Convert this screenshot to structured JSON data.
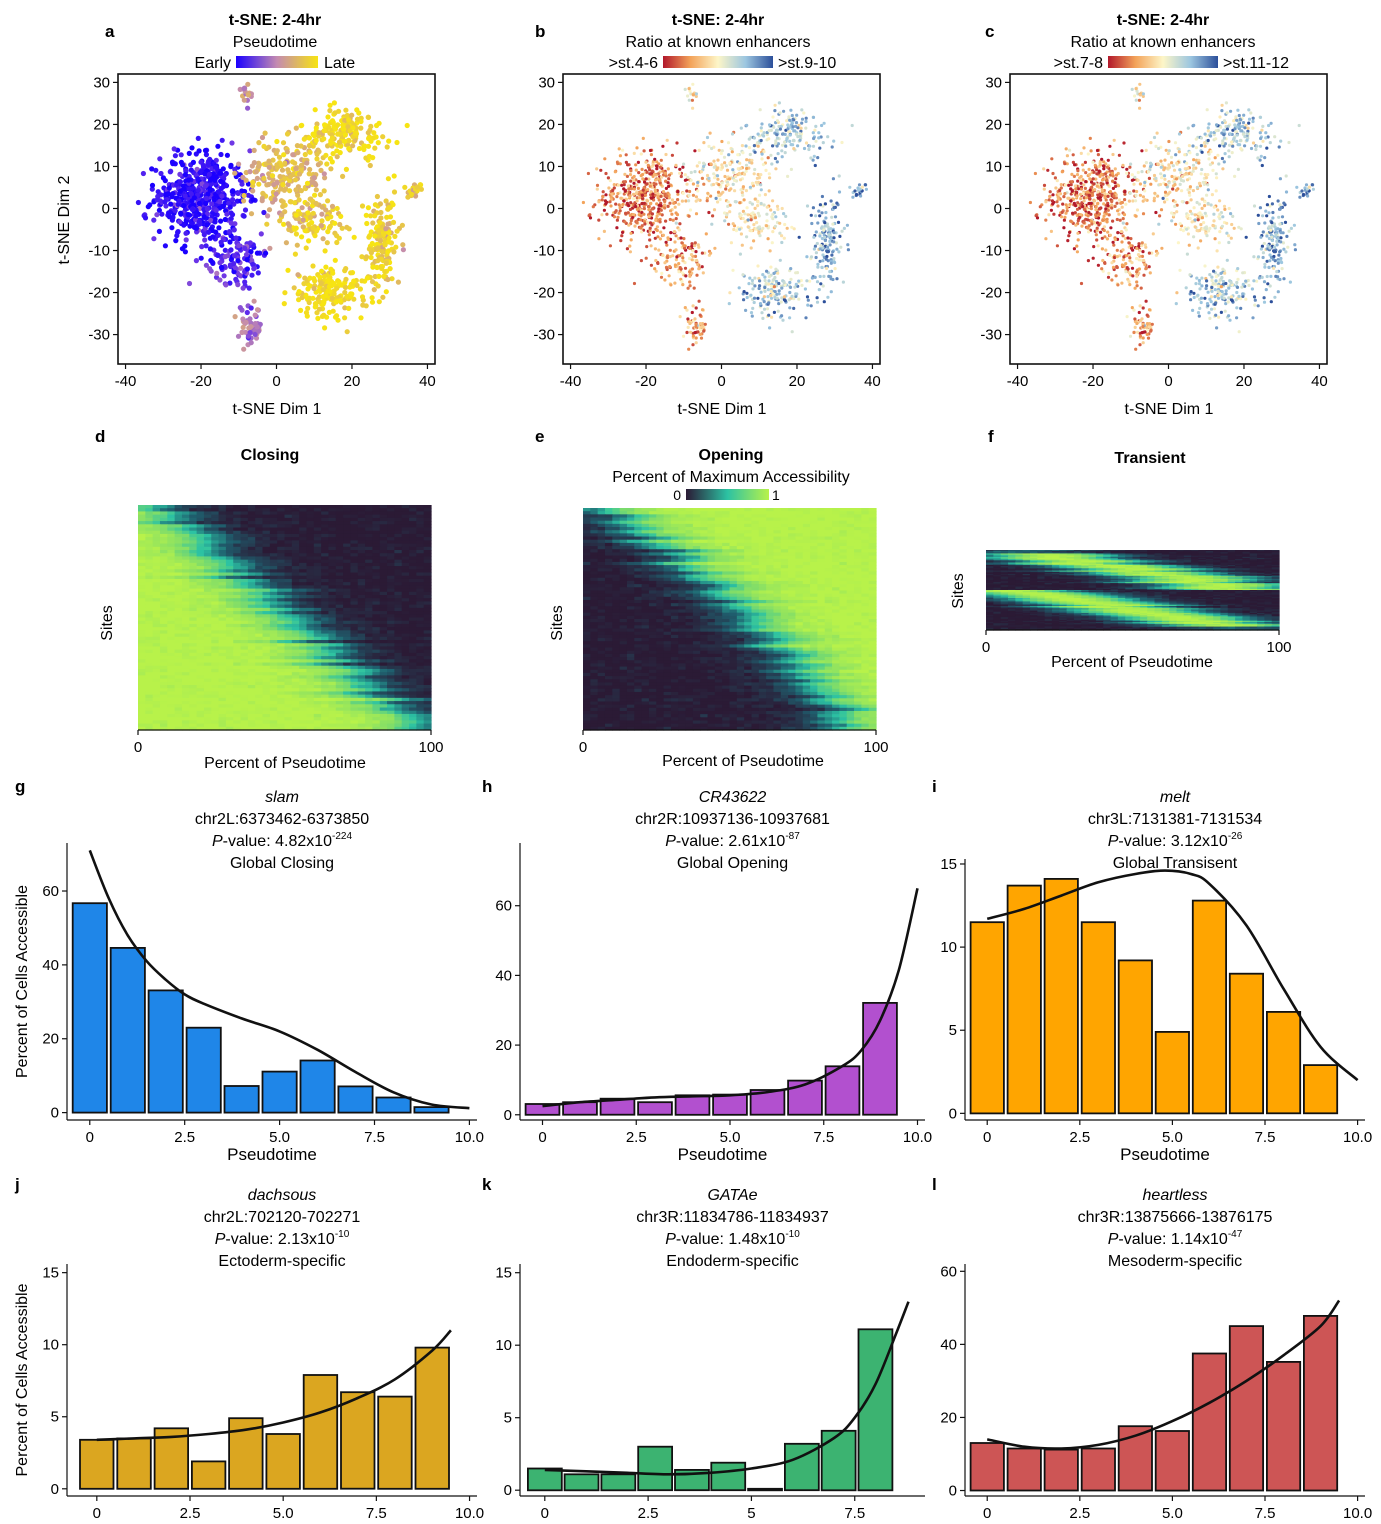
{
  "figure": {
    "background": "#ffffff"
  },
  "colors": {
    "pseudotime_early": "#1b00ff",
    "pseudotime_mid": "#c48bb0",
    "pseudotime_late": "#f7e413",
    "ratio_low": "#b2182b",
    "ratio_mid": "#fdf6c8",
    "ratio_high": "#2c4f9a",
    "access_low": "#2b1a35",
    "access_mid": "#2cc2a3",
    "access_high": "#b8f24a"
  },
  "chart_data": [
    {
      "panel": "a",
      "type": "scatter",
      "title": "t-SNE: 2-4hr",
      "subtitle": "Pseudotime",
      "legend": {
        "low": "Early",
        "high": "Late",
        "placement": "top"
      },
      "xlabel": "t-SNE Dim 1",
      "ylabel": "t-SNE Dim 2",
      "xlim": [
        -42,
        42
      ],
      "ylim": [
        -37,
        32
      ],
      "xticks": [
        -40,
        -20,
        0,
        20,
        40
      ],
      "yticks": [
        -30,
        -20,
        -10,
        0,
        10,
        20,
        30
      ],
      "grid": false,
      "color_by": "pseudotime"
    },
    {
      "panel": "b",
      "type": "scatter",
      "title": "t-SNE: 2-4hr",
      "subtitle": "Ratio at known enhancers",
      "legend": {
        "low": ">st.4-6",
        "high": ">st.9-10",
        "placement": "top"
      },
      "xlabel": "t-SNE Dim 1",
      "ylabel": "",
      "xlim": [
        -42,
        42
      ],
      "ylim": [
        -37,
        32
      ],
      "xticks": [
        -40,
        -20,
        0,
        20,
        40
      ],
      "yticks": [
        -30,
        -20,
        -10,
        0,
        10,
        20,
        30
      ],
      "grid": false,
      "color_by": "enhancer_ratio"
    },
    {
      "panel": "c",
      "type": "scatter",
      "title": "t-SNE: 2-4hr",
      "subtitle": "Ratio at known enhancers",
      "legend": {
        "low": ">st.7-8",
        "high": ">st.11-12",
        "placement": "top"
      },
      "xlabel": "t-SNE Dim 1",
      "ylabel": "",
      "xlim": [
        -42,
        42
      ],
      "ylim": [
        -37,
        32
      ],
      "xticks": [
        -40,
        -20,
        0,
        20,
        40
      ],
      "yticks": [
        -30,
        -20,
        -10,
        0,
        10,
        20,
        30
      ],
      "grid": false,
      "color_by": "enhancer_ratio"
    },
    {
      "panel": "d",
      "type": "heatmap",
      "title": "Closing",
      "xlabel": "Percent of Pseudotime",
      "ylabel": "Sites",
      "xticks": [
        0,
        100
      ],
      "pattern": "closing"
    },
    {
      "panel": "e",
      "type": "heatmap",
      "title": "Opening",
      "legend": {
        "title": "Percent of Maximum Accessibility",
        "low": "0",
        "high": "1",
        "placement": "top"
      },
      "xlabel": "Percent of Pseudotime",
      "ylabel": "Sites",
      "xticks": [
        0,
        100
      ],
      "pattern": "opening"
    },
    {
      "panel": "f",
      "type": "heatmap",
      "title": "Transient",
      "xlabel": "Percent of Pseudotime",
      "ylabel": "Sites",
      "xticks": [
        0,
        100
      ],
      "pattern": "transient"
    },
    {
      "panel": "g",
      "type": "bar",
      "gene": "slam",
      "locus": "chr2L:6373462-6373850",
      "pvalue_prefix": "-value: 4.82x10",
      "pvalue_exp": "-224",
      "category": "Global Closing",
      "fill": "#1f86e8",
      "xlabel": "Pseudotime",
      "ylabel": "Percent of Cells Accessible",
      "xlim": [
        -0.6,
        10.2
      ],
      "ylim": [
        -2,
        73
      ],
      "xticks": [
        0,
        2.5,
        5,
        7.5,
        10
      ],
      "xticklabels": [
        "0",
        "2.5",
        "5.0",
        "7.5",
        "10.0"
      ],
      "yticks": [
        0,
        20,
        40,
        60
      ],
      "yticklabels": [
        "0",
        "20",
        "40",
        "60"
      ],
      "bar_width": 0.9,
      "x": [
        0,
        1,
        2,
        3,
        4,
        5,
        6,
        7,
        8,
        9
      ],
      "values": [
        56.7,
        44.6,
        33.1,
        23,
        7.2,
        11.1,
        14.1,
        7.1,
        4.1,
        1.5
      ],
      "fit_x": [
        0,
        0.5,
        1,
        1.5,
        2,
        2.5,
        3,
        4,
        5,
        6,
        7,
        8,
        9,
        10
      ],
      "fit_y": [
        71,
        58,
        48,
        41,
        36,
        32,
        29.5,
        25.5,
        22,
        17,
        11,
        5.5,
        2.2,
        1.2
      ]
    },
    {
      "panel": "h",
      "type": "bar",
      "gene": "CR43622",
      "locus": "chr2R:10937136-10937681",
      "pvalue_prefix": "-value: 2.61x10",
      "pvalue_exp": "-87",
      "category": "Global Opening",
      "fill": "#b250cf",
      "xlabel": "Pseudotime",
      "ylabel": "",
      "xlim": [
        -0.6,
        10.2
      ],
      "ylim": [
        -1.5,
        78
      ],
      "xticks": [
        0,
        2.5,
        5,
        7.5,
        10
      ],
      "xticklabels": [
        "0",
        "2.5",
        "5.0",
        "7.5",
        "10.0"
      ],
      "yticks": [
        0,
        20,
        40,
        60
      ],
      "yticklabels": [
        "0",
        "20",
        "40",
        "60"
      ],
      "bar_width": 0.9,
      "x": [
        0,
        1,
        2,
        3,
        4,
        5,
        6,
        7,
        8,
        9
      ],
      "values": [
        3.1,
        3.6,
        4.6,
        3.6,
        5.6,
        5.8,
        7.1,
        9.8,
        13.9,
        32.1
      ],
      "fit_x": [
        0,
        1,
        2,
        3,
        4,
        5,
        6,
        7,
        8,
        8.5,
        9,
        9.5,
        10
      ],
      "fit_y": [
        2.5,
        3.6,
        4.3,
        5,
        5.3,
        5.6,
        6.5,
        8.7,
        14,
        18.5,
        27,
        41.5,
        65
      ]
    },
    {
      "panel": "i",
      "type": "bar",
      "gene": "melt",
      "locus": "chr3L:7131381-7131534",
      "pvalue_prefix": "-value: 3.12x10",
      "pvalue_exp": "-26",
      "category": "Global Transisent",
      "fill": "#ffa500",
      "xlabel": "Pseudotime",
      "ylabel": "",
      "xlim": [
        -0.6,
        10.2
      ],
      "ylim": [
        -0.4,
        15.3
      ],
      "xticks": [
        0,
        2.5,
        5,
        7.5,
        10
      ],
      "xticklabels": [
        "0",
        "2.5",
        "5.0",
        "7.5",
        "10.0"
      ],
      "yticks": [
        0,
        5,
        10,
        15
      ],
      "yticklabels": [
        "0",
        "5",
        "10",
        "15"
      ],
      "bar_width": 0.9,
      "x": [
        0,
        1,
        2,
        3,
        4,
        5,
        6,
        7,
        8,
        9
      ],
      "values": [
        11.5,
        13.7,
        14.1,
        11.5,
        9.2,
        4.9,
        12.8,
        8.4,
        6.1,
        2.9
      ],
      "fit_x": [
        0,
        1,
        2,
        3,
        4,
        4.8,
        5.5,
        6,
        7,
        8,
        9,
        10
      ],
      "fit_y": [
        11.7,
        12.3,
        13.1,
        13.9,
        14.4,
        14.6,
        14.4,
        13.8,
        11.3,
        7.5,
        4,
        2
      ]
    },
    {
      "panel": "j",
      "type": "bar",
      "gene": "dachsous",
      "locus": "chr2L:702120-702271",
      "pvalue_prefix": "-value: 2.13x10",
      "pvalue_exp": "-10",
      "category": "Ectoderm-specific",
      "fill": "#dba620",
      "xlabel": "Pseudotime",
      "ylabel": "Percent of Cells Accessible",
      "xlim": [
        -0.8,
        10.2
      ],
      "ylim": [
        -0.5,
        15.6
      ],
      "xticks": [
        0,
        2.5,
        5,
        7.5,
        10
      ],
      "xticklabels": [
        "0",
        "2.5",
        "5.0",
        "7.5",
        "10.0"
      ],
      "yticks": [
        0,
        5,
        10,
        15
      ],
      "yticklabels": [
        "0",
        "5",
        "10",
        "15"
      ],
      "bar_width": 0.9,
      "x": [
        0,
        1,
        2,
        3,
        4,
        5,
        6,
        7,
        8,
        9
      ],
      "values": [
        3.4,
        3.5,
        4.2,
        1.9,
        4.9,
        3.8,
        7.9,
        6.7,
        6.4,
        9.8
      ],
      "fit_x": [
        0,
        1,
        2,
        3,
        4,
        5,
        6,
        7,
        8,
        9,
        9.5
      ],
      "fit_y": [
        3.4,
        3.5,
        3.6,
        3.8,
        4.1,
        4.6,
        5.3,
        6.3,
        7.6,
        9.6,
        11
      ]
    },
    {
      "panel": "k",
      "type": "bar",
      "gene": "GATAe",
      "locus": "chr3R:11834786-11834937",
      "pvalue_prefix": "-value: 1.48x10",
      "pvalue_exp": "-10",
      "category": "Endoderm-specific",
      "fill": "#3cb371",
      "xlabel": "Pseudotime",
      "ylabel": "",
      "xlim": [
        -0.6,
        9.2
      ],
      "ylim": [
        -0.4,
        15.6
      ],
      "xticks": [
        0,
        2.5,
        5,
        7.5
      ],
      "xticklabels": [
        "0",
        "2.5",
        "5",
        "7.5"
      ],
      "yticks": [
        0,
        5,
        10,
        15
      ],
      "yticklabels": [
        "0",
        "5",
        "10",
        "15"
      ],
      "bar_width": 0.82,
      "x": [
        0,
        0.89,
        1.78,
        2.67,
        3.56,
        4.44,
        5.33,
        6.22,
        7.11,
        8
      ],
      "values": [
        1.5,
        1.1,
        1.1,
        3,
        1.4,
        1.9,
        0.1,
        3.2,
        4.1,
        11.1
      ],
      "fit_x": [
        0,
        1,
        2,
        3,
        4,
        5,
        6,
        7,
        7.5,
        8,
        8.5,
        8.8
      ],
      "fit_y": [
        1.4,
        1.3,
        1.2,
        1.1,
        1.2,
        1.5,
        2.1,
        3.6,
        5,
        7.3,
        10.8,
        13
      ]
    },
    {
      "panel": "l",
      "type": "bar",
      "gene": "heartless",
      "locus": "chr3R:13875666-13876175",
      "pvalue_prefix": "-value: 1.14x10",
      "pvalue_exp": "-47",
      "category": "Mesoderm-specific",
      "fill": "#cd5555",
      "xlabel": "Pseudotime",
      "ylabel": "",
      "xlim": [
        -0.6,
        10.2
      ],
      "ylim": [
        -1.5,
        62
      ],
      "xticks": [
        0,
        2.5,
        5,
        7.5,
        10
      ],
      "xticklabels": [
        "0",
        "2.5",
        "5.0",
        "7.5",
        "10.0"
      ],
      "yticks": [
        0,
        20,
        40,
        60
      ],
      "yticklabels": [
        "0",
        "20",
        "40",
        "60"
      ],
      "bar_width": 0.9,
      "x": [
        0,
        1,
        2,
        3,
        4,
        5,
        6,
        7,
        8,
        9
      ],
      "values": [
        13,
        11.5,
        11.2,
        11.5,
        17.6,
        16.3,
        37.5,
        45,
        35.2,
        47.8
      ],
      "fit_x": [
        0,
        1,
        2,
        3,
        4,
        5,
        6,
        7,
        8,
        9,
        9.5
      ],
      "fit_y": [
        14,
        12,
        11.5,
        12.5,
        15,
        19,
        24,
        30,
        37,
        45,
        52
      ]
    }
  ]
}
